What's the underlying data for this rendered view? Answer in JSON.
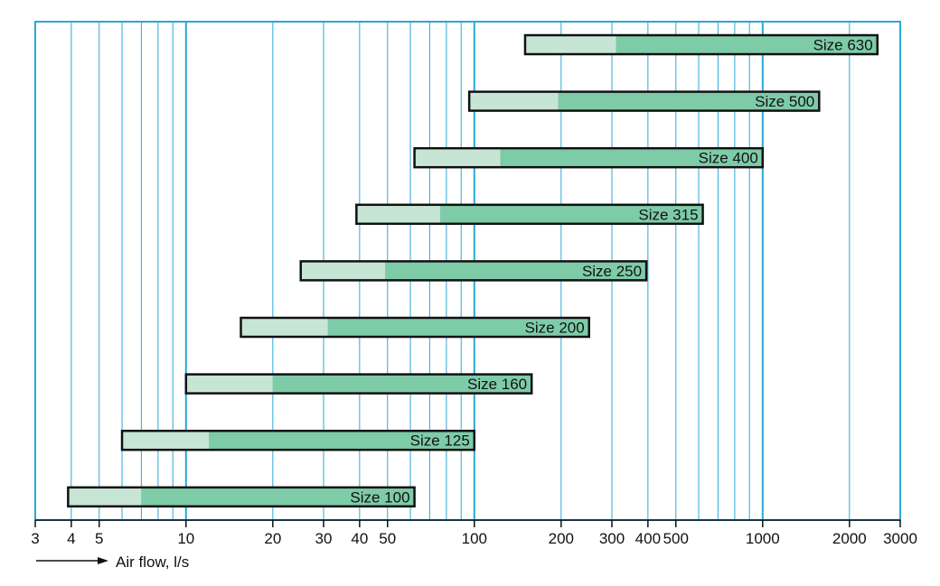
{
  "chart_data": {
    "type": "bar",
    "orientation": "horizontal-range",
    "xlabel": "Air flow, l/s",
    "xscale": "log",
    "xlim": [
      3,
      3000
    ],
    "grid": true,
    "x_ticks": [
      3,
      4,
      5,
      10,
      20,
      30,
      40,
      50,
      100,
      200,
      300,
      400,
      500,
      1000,
      2000,
      3000
    ],
    "x_tick_labels": [
      "3",
      "4",
      "5",
      "10",
      "20",
      "30",
      "40",
      "50",
      "100",
      "200",
      "300",
      "400",
      "500",
      "1000",
      "2000",
      "3000"
    ],
    "series": [
      {
        "name": "Size 630",
        "start": 150,
        "split": 310,
        "end": 2500
      },
      {
        "name": "Size 500",
        "start": 96,
        "split": 195,
        "end": 1570
      },
      {
        "name": "Size 400",
        "start": 62,
        "split": 123,
        "end": 1000
      },
      {
        "name": "Size 315",
        "start": 39,
        "split": 76,
        "end": 620
      },
      {
        "name": "Size 250",
        "start": 25,
        "split": 49,
        "end": 395
      },
      {
        "name": "Size 200",
        "start": 15.5,
        "split": 31,
        "end": 250
      },
      {
        "name": "Size 160",
        "start": 10,
        "split": 20,
        "end": 158
      },
      {
        "name": "Size 125",
        "start": 6,
        "split": 12,
        "end": 100
      },
      {
        "name": "Size 100",
        "start": 3.9,
        "split": 7,
        "end": 62
      }
    ],
    "colors": {
      "grid": "#29a9d6",
      "light_segment": "#c7e5d5",
      "dark_segment": "#7ecba8",
      "bar_border": "#111111"
    }
  }
}
